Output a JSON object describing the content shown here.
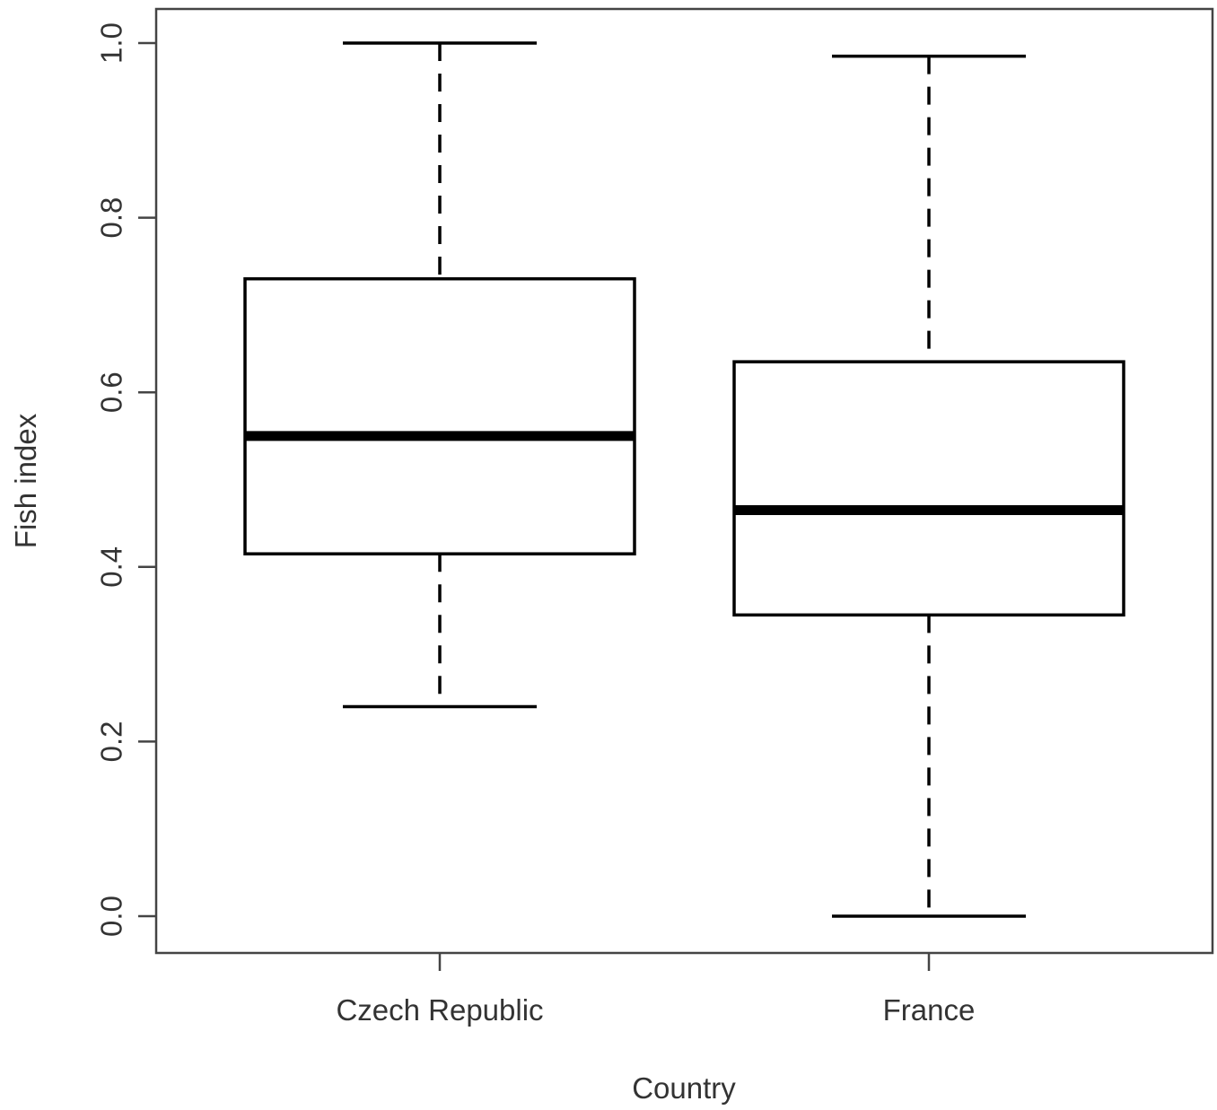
{
  "chart_data": {
    "type": "boxplot",
    "title": "",
    "xlabel": "Country",
    "ylabel": "Fish index",
    "ylim": [
      0.0,
      1.0
    ],
    "y_ticks": [
      "0.0",
      "0.2",
      "0.4",
      "0.6",
      "0.8",
      "1.0"
    ],
    "categories": [
      "Czech Republic",
      "France"
    ],
    "boxes": [
      {
        "category": "Czech Republic",
        "whisker_low": 0.24,
        "q1": 0.415,
        "median": 0.55,
        "q3": 0.73,
        "whisker_high": 1.0
      },
      {
        "category": "France",
        "whisker_low": 0.0,
        "q1": 0.345,
        "median": 0.465,
        "q3": 0.635,
        "whisker_high": 0.985
      }
    ],
    "grid": false,
    "legend": "none",
    "colors": {
      "box_fill": "#ffffff",
      "stroke": "#000000",
      "axis": "#444444",
      "text": "#333333"
    }
  }
}
